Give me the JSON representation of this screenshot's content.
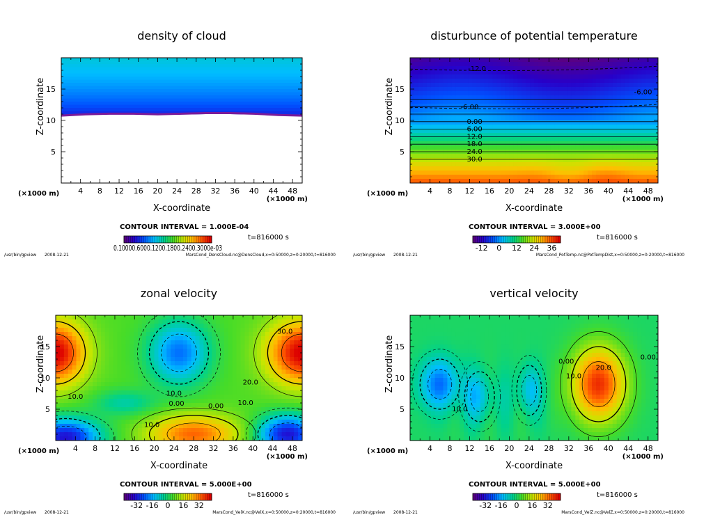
{
  "app": {
    "footer_left": "/usr/bin/gpview",
    "footer_date": "2008-12-21"
  },
  "chart_data": [
    {
      "type": "heatmap",
      "title": "density of cloud",
      "xlabel": "X-coordinate",
      "ylabel": "Z-coordinate",
      "x_unit": "(×1000 m)",
      "y_unit": "(×1000 m)",
      "xlim": [
        0,
        50
      ],
      "ylim": [
        0,
        20
      ],
      "x_ticks": [
        4,
        8,
        12,
        16,
        20,
        24,
        28,
        32,
        36,
        40,
        44,
        48
      ],
      "y_ticks": [
        5,
        10,
        15
      ],
      "contour_interval": "CONTOUR INTERVAL = 1.000E-04",
      "time_label": "t=816000 s",
      "colorbar_labels": "0.10000.6000.1200.1800.2400.3000e-03",
      "footer_right": "MarsCond_DensCloud.nc@DensCloud,x=0:50000,z=0:20000,t=816000",
      "field": "cloud",
      "cloud_base_z": [
        10.6,
        10.8,
        10.9,
        10.9,
        10.8,
        10.9,
        11.0,
        11.0,
        10.9,
        10.7,
        10.6
      ],
      "cloud_base_x": [
        0,
        5,
        10,
        15,
        20,
        25,
        30,
        35,
        40,
        45,
        50
      ],
      "grid": false
    },
    {
      "type": "heatmap",
      "title": "disturbunce of potential temperature",
      "xlabel": "X-coordinate",
      "ylabel": "Z-coordinate",
      "x_unit": "(×1000 m)",
      "y_unit": "(×1000 m)",
      "xlim": [
        0,
        50
      ],
      "ylim": [
        0,
        20
      ],
      "x_ticks": [
        4,
        8,
        12,
        16,
        20,
        24,
        28,
        32,
        36,
        40,
        44,
        48
      ],
      "y_ticks": [
        5,
        10,
        15
      ],
      "contour_interval": "CONTOUR INTERVAL = 3.000E+00",
      "time_label": "t=816000 s",
      "colorbar_ticks": [
        "-12",
        "0",
        "12",
        "24",
        "36"
      ],
      "colorbar_range": [
        -18,
        42
      ],
      "footer_right": "MarsCond_PotTemp.nc@PotTempDist,x=0:50000,z=0:20000,t=816000",
      "field": "theta",
      "contour_labels": [
        {
          "text": "-12.0",
          "x": 13.5,
          "z": 18.2
        },
        {
          "text": "-6.00",
          "x": 47.0,
          "z": 14.5
        },
        {
          "text": "-6.00",
          "x": 12.0,
          "z": 12.1
        },
        {
          "text": "0.00",
          "x": 13.0,
          "z": 9.8
        },
        {
          "text": "6.00",
          "x": 13.0,
          "z": 8.6
        },
        {
          "text": "12.0",
          "x": 13.0,
          "z": 7.4
        },
        {
          "text": "18.0",
          "x": 13.0,
          "z": 6.2
        },
        {
          "text": "24.0",
          "x": 13.0,
          "z": 5.0
        },
        {
          "text": "30.0",
          "x": 13.0,
          "z": 3.8
        }
      ],
      "grid": false
    },
    {
      "type": "heatmap",
      "title": "zonal velocity",
      "xlabel": "X-coordinate",
      "ylabel": "Z-coordinate",
      "x_unit": "(×1000 m)",
      "y_unit": "(×1000 m)",
      "xlim": [
        0,
        50
      ],
      "ylim": [
        0,
        20
      ],
      "x_ticks": [
        4,
        8,
        12,
        16,
        20,
        24,
        28,
        32,
        36,
        40,
        44,
        48
      ],
      "y_ticks": [
        5,
        10,
        15
      ],
      "contour_interval": "CONTOUR INTERVAL = 5.000E+00",
      "time_label": "t=816000 s",
      "colorbar_ticks": [
        "-32",
        "-16",
        "0",
        "16",
        "32"
      ],
      "colorbar_range": [
        -45,
        45
      ],
      "footer_right": "MarsCond_VelX.nc@VelX,x=0:50000,z=0:20000,t=816000",
      "field": "u",
      "contour_labels": [
        {
          "text": "30.0",
          "x": 46.5,
          "z": 17.4
        },
        {
          "text": "20.0",
          "x": 39.5,
          "z": 9.3
        },
        {
          "text": "10.0",
          "x": 24.0,
          "z": 7.5
        },
        {
          "text": "10.0",
          "x": 4.0,
          "z": 7.0
        },
        {
          "text": "10.0",
          "x": 38.5,
          "z": 6.0
        },
        {
          "text": "0.00",
          "x": 24.5,
          "z": 5.9
        },
        {
          "text": "0.00",
          "x": 32.5,
          "z": 5.5
        },
        {
          "text": "10.0",
          "x": 19.5,
          "z": 2.5
        }
      ],
      "grid": false
    },
    {
      "type": "heatmap",
      "title": "vertical velocity",
      "xlabel": "X-coordinate",
      "ylabel": "Z-coordinate",
      "x_unit": "(×1000 m)",
      "y_unit": "(×1000 m)",
      "xlim": [
        0,
        50
      ],
      "ylim": [
        0,
        20
      ],
      "x_ticks": [
        4,
        8,
        12,
        16,
        20,
        24,
        28,
        32,
        36,
        40,
        44,
        48
      ],
      "y_ticks": [
        5,
        10,
        15
      ],
      "contour_interval": "CONTOUR INTERVAL = 5.000E+00",
      "time_label": "t=816000 s",
      "colorbar_ticks": [
        "-32",
        "-16",
        "0",
        "16",
        "32"
      ],
      "colorbar_range": [
        -45,
        45
      ],
      "footer_right": "MarsCond_VelZ.nc@VelZ,x=0:50000,z=0:20000,t=816000",
      "field": "w",
      "contour_labels": [
        {
          "text": "20.0",
          "x": 39.0,
          "z": 11.6
        },
        {
          "text": "10.0",
          "x": 33.0,
          "z": 10.3
        },
        {
          "text": "0.00",
          "x": 31.5,
          "z": 12.6
        },
        {
          "text": "0.00",
          "x": 48.0,
          "z": 13.3
        },
        {
          "text": "10.0",
          "x": 10.0,
          "z": 5.0
        }
      ],
      "grid": false
    }
  ]
}
